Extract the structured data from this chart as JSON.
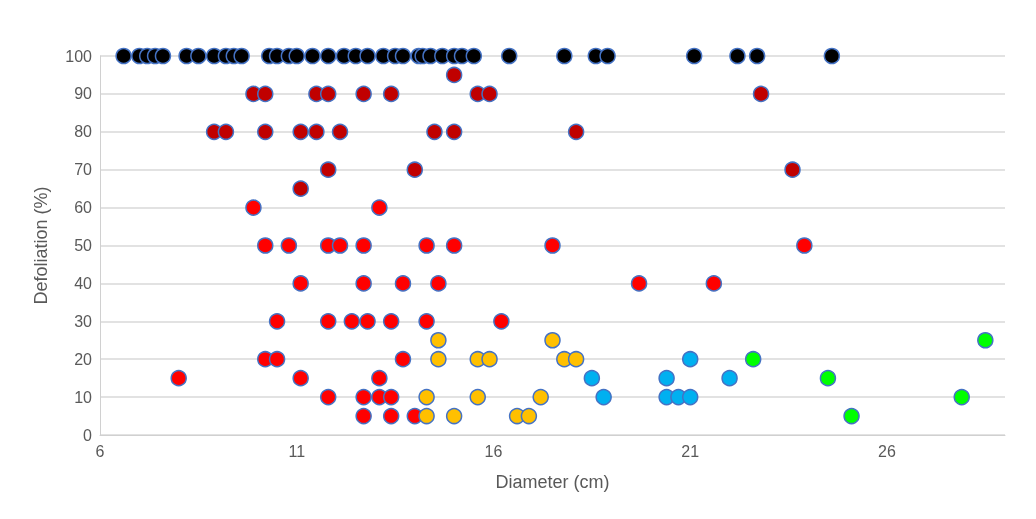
{
  "chart_data": {
    "type": "scatter",
    "xlabel": "Diameter (cm)",
    "ylabel": "Defoliation (%)",
    "xlim": [
      6,
      29
    ],
    "xticks": [
      6,
      11,
      16,
      21,
      26
    ],
    "ylim": [
      0,
      100
    ],
    "yticks": [
      0,
      10,
      20,
      30,
      40,
      50,
      60,
      70,
      80,
      90,
      100
    ],
    "grid": "y",
    "marker": "circle",
    "series": [
      {
        "color": "#000000",
        "x": [
          6.6,
          7.0,
          7.2,
          7.4,
          7.6,
          8.2,
          8.5,
          8.9,
          9.2,
          9.4,
          9.6,
          10.3,
          10.5,
          10.8,
          11.0,
          11.4,
          11.8,
          12.2,
          12.5,
          12.8,
          13.2,
          13.5,
          13.7,
          14.1,
          14.2,
          14.4,
          14.7,
          15.0,
          15.2,
          15.5,
          16.4,
          17.8,
          18.6,
          18.9,
          21.1,
          22.2,
          22.7,
          24.6
        ],
        "values": [
          100,
          100,
          100,
          100,
          100,
          100,
          100,
          100,
          100,
          100,
          100,
          100,
          100,
          100,
          100,
          100,
          100,
          100,
          100,
          100,
          100,
          100,
          100,
          100,
          100,
          100,
          100,
          100,
          100,
          100,
          100,
          100,
          100,
          100,
          100,
          100,
          100,
          100
        ]
      },
      {
        "color": "#c00000",
        "x": [
          15.0,
          9.9,
          10.2,
          11.5,
          11.8,
          12.7,
          13.4,
          15.6,
          15.9,
          22.8,
          8.9,
          9.2,
          10.2,
          11.1,
          11.5,
          12.1,
          14.5,
          15.0,
          18.1,
          11.8,
          14.0,
          23.6,
          11.1
        ],
        "values": [
          95,
          90,
          90,
          90,
          90,
          90,
          90,
          90,
          90,
          90,
          80,
          80,
          80,
          80,
          80,
          80,
          80,
          80,
          80,
          70,
          70,
          70,
          65
        ]
      },
      {
        "color": "#ff0000",
        "x": [
          9.9,
          13.1,
          10.2,
          10.8,
          11.8,
          12.1,
          12.7,
          14.3,
          15.0,
          17.5,
          23.9,
          11.1,
          12.7,
          13.7,
          14.6,
          19.7,
          21.6,
          10.5,
          11.8,
          12.4,
          12.8,
          13.4,
          14.3,
          16.2,
          10.2,
          10.5,
          13.7,
          8.0,
          11.1,
          13.1,
          11.8,
          12.7,
          13.1,
          13.4,
          12.7,
          13.4,
          14.0
        ],
        "values": [
          60,
          60,
          50,
          50,
          50,
          50,
          50,
          50,
          50,
          50,
          50,
          40,
          40,
          40,
          40,
          40,
          40,
          30,
          30,
          30,
          30,
          30,
          30,
          30,
          20,
          20,
          20,
          15,
          15,
          15,
          10,
          10,
          10,
          10,
          5,
          5,
          5
        ]
      },
      {
        "color": "#ffc000",
        "x": [
          14.6,
          17.5,
          14.6,
          15.6,
          15.9,
          17.8,
          18.1,
          14.3,
          15.6,
          17.2,
          14.3,
          15.0,
          16.6,
          16.9
        ],
        "values": [
          25,
          25,
          20,
          20,
          20,
          20,
          20,
          10,
          10,
          10,
          5,
          5,
          5,
          5
        ]
      },
      {
        "color": "#00b0f0",
        "x": [
          21.0,
          18.5,
          20.4,
          22.0,
          18.8,
          20.4,
          20.7,
          21.0
        ],
        "values": [
          20,
          15,
          15,
          15,
          10,
          10,
          10,
          10
        ]
      },
      {
        "color": "#00ff00",
        "x": [
          22.6,
          24.5,
          25.1,
          27.9,
          28.5
        ],
        "values": [
          20,
          15,
          5,
          10,
          25
        ]
      }
    ]
  }
}
